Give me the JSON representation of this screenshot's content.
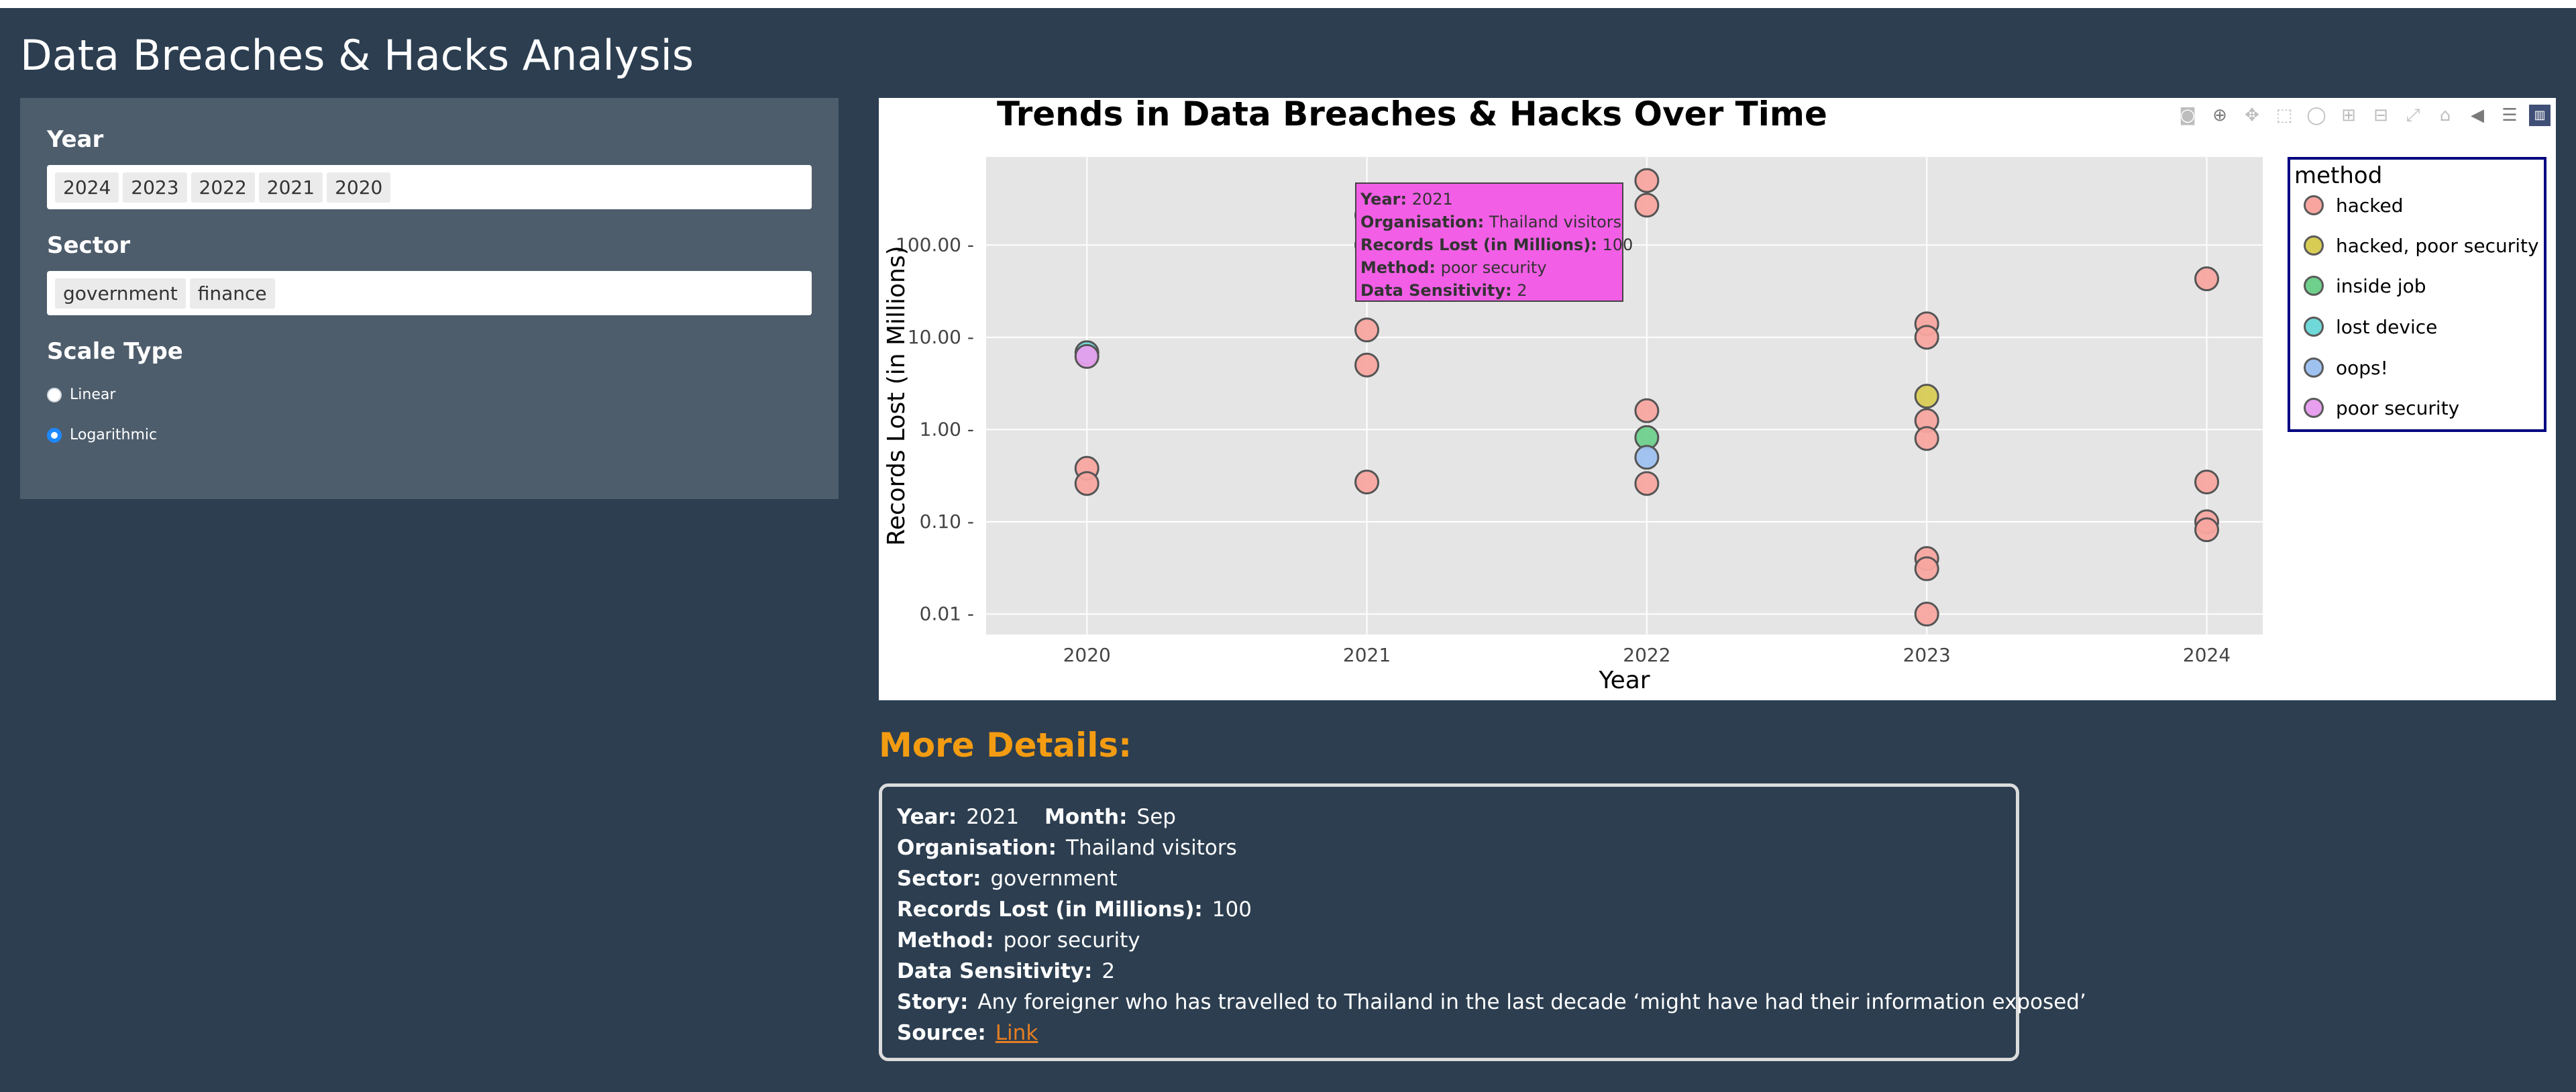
{
  "app": {
    "title": "Data Breaches & Hacks Analysis"
  },
  "sidebar": {
    "year_label": "Year",
    "year_selected": [
      "2024",
      "2023",
      "2022",
      "2021",
      "2020"
    ],
    "sector_label": "Sector",
    "sector_selected": [
      "government",
      "finance"
    ],
    "scale_label": "Scale Type",
    "scale_options": [
      {
        "label": "Linear",
        "checked": false
      },
      {
        "label": "Logarithmic",
        "checked": true
      }
    ]
  },
  "modebar": {
    "icons": [
      "camera-icon",
      "zoom-icon",
      "pan-icon",
      "box-select-icon",
      "lasso-icon",
      "zoom-in-icon",
      "zoom-out-icon",
      "autoscale-icon",
      "reset-axes-icon",
      "spike-lines-icon",
      "compare-hover-icon",
      "plotly-logo-icon"
    ]
  },
  "chart_data": {
    "type": "scatter",
    "title": "Trends in Data Breaches & Hacks Over Time",
    "xlabel": "Year",
    "ylabel": "Records Lost (in Millions)",
    "x_ticks": [
      "2020",
      "2021",
      "2022",
      "2023",
      "2024"
    ],
    "y_scale": "log",
    "y_ticks": [
      "0.01",
      "0.10",
      "1.00",
      "10.00",
      "100.00"
    ],
    "ylim": [
      0.006,
      900
    ],
    "grid": true,
    "legend": {
      "title": "method",
      "placement": "right",
      "items": [
        {
          "name": "hacked",
          "color": "#f8a5a0"
        },
        {
          "name": "hacked, poor security",
          "color": "#d8cc55"
        },
        {
          "name": "inside job",
          "color": "#6fd08c"
        },
        {
          "name": "lost device",
          "color": "#6fd8d8"
        },
        {
          "name": "oops!",
          "color": "#9ec1f0"
        },
        {
          "name": "poor security",
          "color": "#e79fee"
        }
      ]
    },
    "series": [
      {
        "name": "hacked",
        "color": "#f8a5a0",
        "points": [
          [
            2020,
            0.38
          ],
          [
            2020,
            0.26
          ],
          [
            2021,
            210
          ],
          [
            2021,
            12
          ],
          [
            2021,
            5
          ],
          [
            2021,
            0.27
          ],
          [
            2022,
            500
          ],
          [
            2022,
            270
          ],
          [
            2022,
            1.6
          ],
          [
            2022,
            0.26
          ],
          [
            2023,
            14
          ],
          [
            2023,
            10
          ],
          [
            2023,
            1.25
          ],
          [
            2023,
            0.8
          ],
          [
            2023,
            0.04
          ],
          [
            2023,
            0.031
          ],
          [
            2023,
            0.01
          ],
          [
            2024,
            43
          ],
          [
            2024,
            0.27
          ],
          [
            2024,
            0.1
          ],
          [
            2024,
            0.082
          ]
        ]
      },
      {
        "name": "hacked, poor security",
        "color": "#d8cc55",
        "points": [
          [
            2023,
            2.3
          ]
        ]
      },
      {
        "name": "inside job",
        "color": "#6fd08c",
        "points": [
          [
            2022,
            0.82
          ]
        ]
      },
      {
        "name": "lost device",
        "color": "#6fd8d8",
        "points": [
          [
            2020,
            6.8
          ]
        ]
      },
      {
        "name": "oops!",
        "color": "#9ec1f0",
        "points": [
          [
            2022,
            0.5
          ]
        ]
      },
      {
        "name": "poor security",
        "color": "#e79fee",
        "points": [
          [
            2020,
            6.2
          ],
          [
            2021,
            100
          ]
        ]
      }
    ],
    "hover": {
      "year_label": "Year:",
      "year": "2021",
      "org_label": "Organisation:",
      "org": "Thailand visitors",
      "records_label": "Records Lost (in Millions):",
      "records": "100",
      "method_label": "Method:",
      "method": "poor security",
      "sens_label": "Data Sensitivity:",
      "sens": "2"
    }
  },
  "details": {
    "heading": "More Details:",
    "year_label": "Year:",
    "year": "2021",
    "month_label": "Month:",
    "month": "Sep",
    "org_label": "Organisation:",
    "org": "Thailand visitors",
    "sector_label": "Sector:",
    "sector": "government",
    "records_label": "Records Lost (in Millions):",
    "records": "100",
    "method_label": "Method:",
    "method": "poor security",
    "sens_label": "Data Sensitivity:",
    "sens": "2",
    "story_label": "Story:",
    "story": "Any foreigner who has travelled to Thailand in the last decade ‘might have had their information exposed’",
    "source_label": "Source:",
    "source_link": "Link"
  }
}
